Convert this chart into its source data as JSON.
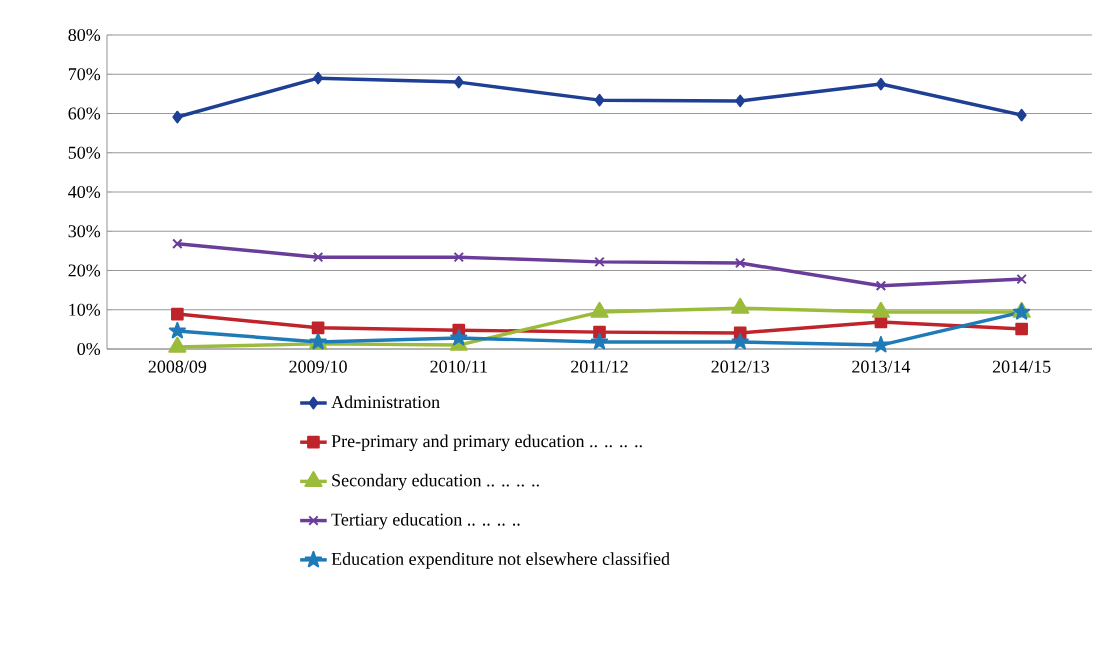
{
  "chart_data": {
    "type": "line",
    "categories": [
      "2008/09",
      "2009/10",
      "2010/11",
      "2011/12",
      "2012/13",
      "2013/14",
      "2014/15"
    ],
    "series": [
      {
        "name": "Administration",
        "color": "#1f3f94",
        "marker": "diamond",
        "values": [
          59.1,
          69.0,
          68.0,
          63.4,
          63.2,
          67.5,
          59.6
        ]
      },
      {
        "name": "Pre-primary and primary education .. .. .. ..",
        "color": "#c0242b",
        "marker": "square",
        "values": [
          8.9,
          5.4,
          4.8,
          4.3,
          4.1,
          6.9,
          5.1
        ]
      },
      {
        "name": "Secondary education .. .. .. ..",
        "color": "#9bbb3b",
        "marker": "triangle",
        "values": [
          0.5,
          1.3,
          1.0,
          9.4,
          10.4,
          9.4,
          9.4
        ]
      },
      {
        "name": "Tertiary education .. .. .. ..",
        "color": "#6a3d9a",
        "marker": "cross",
        "values": [
          26.8,
          23.4,
          23.4,
          22.2,
          21.9,
          16.1,
          17.8
        ]
      },
      {
        "name": "Education expenditure not elsewhere classified",
        "color": "#1f7ab8",
        "marker": "star",
        "values": [
          4.6,
          1.8,
          2.8,
          1.8,
          1.8,
          1.0,
          9.4
        ]
      }
    ],
    "ylim": [
      0,
      80
    ],
    "yticks": [
      {
        "value": 0,
        "label": "0%"
      },
      {
        "value": 10,
        "label": "10%"
      },
      {
        "value": 20,
        "label": "20%"
      },
      {
        "value": 30,
        "label": "30%"
      },
      {
        "value": 40,
        "label": "40%"
      },
      {
        "value": 50,
        "label": "50%"
      },
      {
        "value": 60,
        "label": "60%"
      },
      {
        "value": 70,
        "label": "70%"
      },
      {
        "value": 80,
        "label": "80%"
      }
    ],
    "grid": "y",
    "legend": "bottom"
  }
}
